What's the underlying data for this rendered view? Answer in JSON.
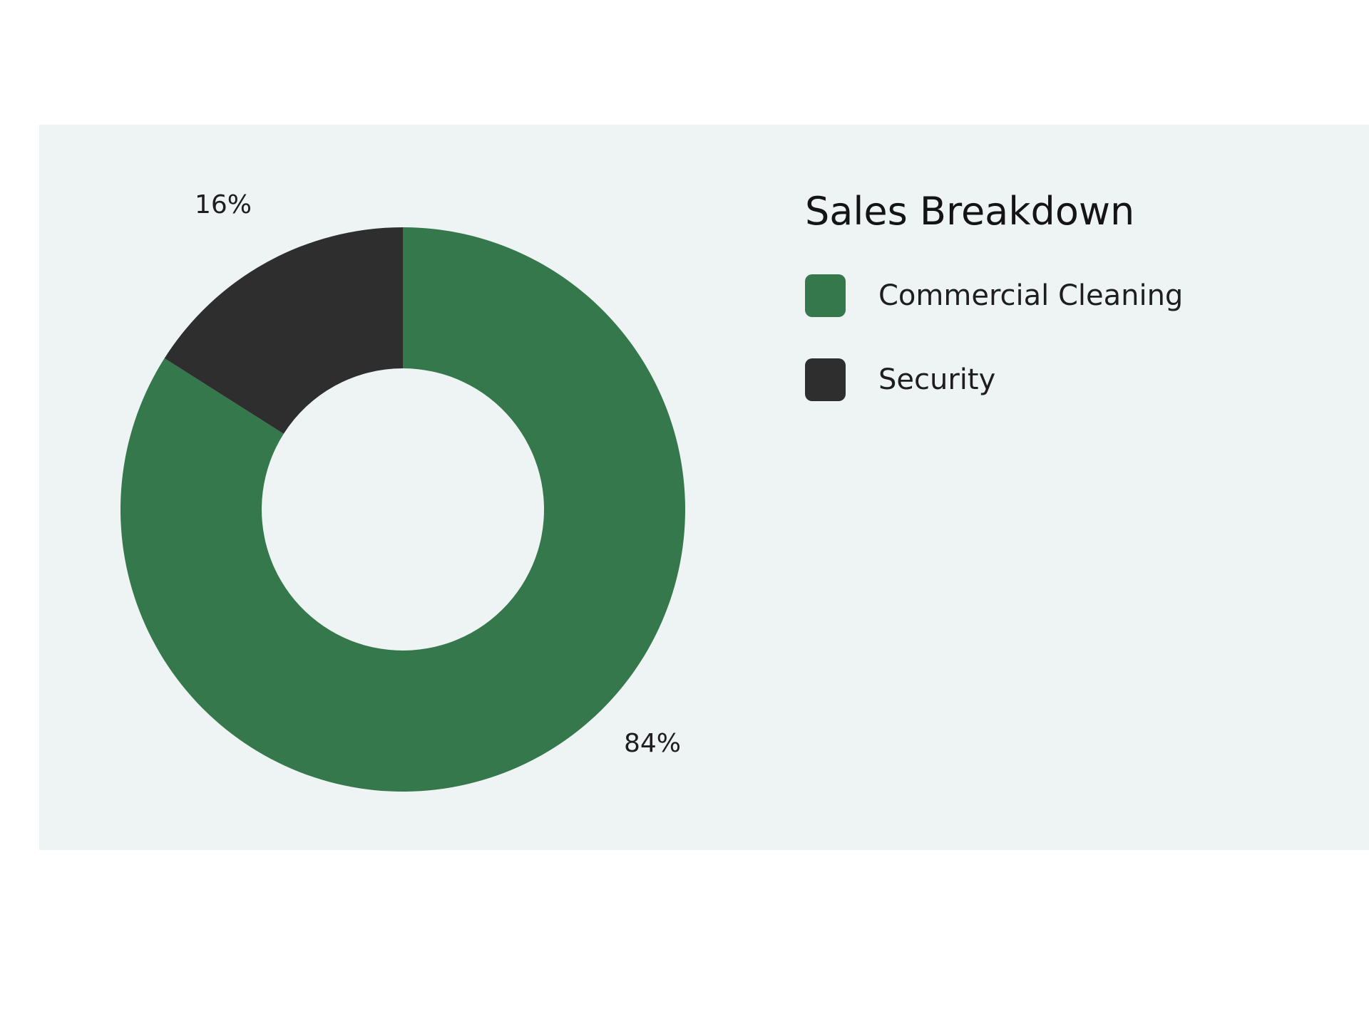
{
  "chart_data": {
    "type": "pie",
    "subtype": "donut",
    "title": "Sales Breakdown",
    "categories": [
      "Commercial Cleaning",
      "Security"
    ],
    "values": [
      84,
      16
    ],
    "value_labels": [
      "84%",
      "16%"
    ],
    "colors": [
      "#34784c",
      "#2e2e2e"
    ],
    "legend_position": "right"
  }
}
